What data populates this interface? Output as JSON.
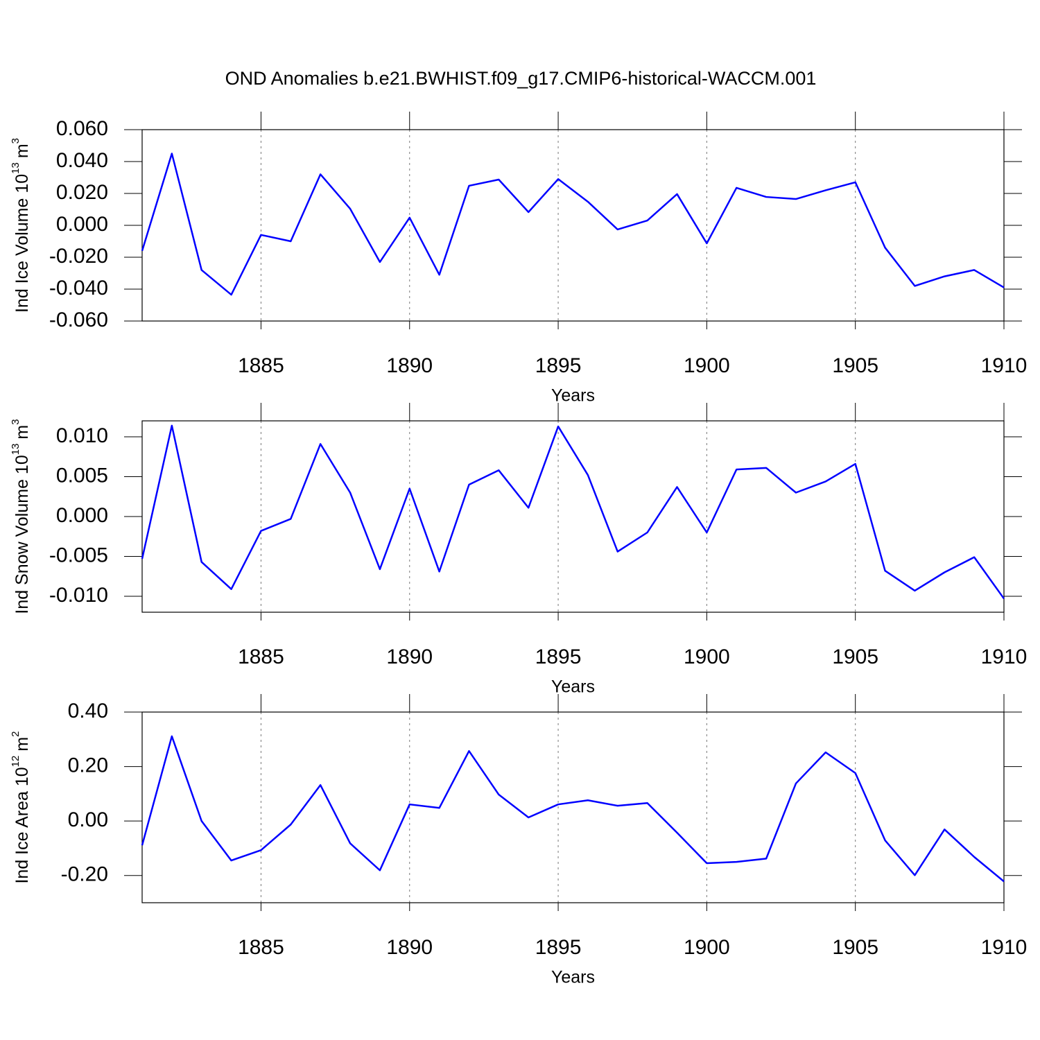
{
  "title": "OND Anomalies b.e21.BWHIST.f09_g17.CMIP6-historical-WACCM.001",
  "chart_data": [
    {
      "type": "line",
      "x_label": "Years",
      "y_label": [
        "Ind Ice Volume 10",
        "13",
        "m",
        "3"
      ],
      "color": "#0000ff",
      "grid": "x",
      "x": [
        1881,
        1882,
        1883,
        1884,
        1885,
        1886,
        1887,
        1888,
        1889,
        1890,
        1891,
        1892,
        1893,
        1894,
        1895,
        1896,
        1897,
        1898,
        1899,
        1900,
        1901,
        1902,
        1903,
        1904,
        1905,
        1906,
        1907,
        1908,
        1909,
        1910
      ],
      "values": [
        -0.016,
        0.045,
        -0.028,
        -0.0435,
        -0.006,
        -0.01,
        0.032,
        0.0104,
        -0.023,
        0.0048,
        -0.031,
        0.0248,
        0.0287,
        0.0083,
        0.029,
        0.0148,
        -0.0026,
        0.003,
        0.0196,
        -0.0113,
        0.0235,
        0.0178,
        0.0165,
        0.022,
        0.027,
        -0.014,
        -0.038,
        -0.032,
        -0.028,
        -0.039
      ],
      "xlim": [
        1881,
        1910
      ],
      "xticks": [
        1885,
        1890,
        1895,
        1900,
        1905,
        1910
      ],
      "ylim": [
        -0.06,
        0.06
      ],
      "yticks": [
        {
          "value": 0.06,
          "label": "0.060"
        },
        {
          "value": 0.04,
          "label": "0.040"
        },
        {
          "value": 0.02,
          "label": "0.020"
        },
        {
          "value": 0,
          "label": "0.000"
        },
        {
          "value": -0.02,
          "label": "-0.020"
        },
        {
          "value": -0.04,
          "label": "-0.040"
        },
        {
          "value": -0.06,
          "label": "-0.060"
        }
      ]
    },
    {
      "type": "line",
      "x_label": "Years",
      "y_label": [
        "Ind Snow Volume 10",
        "13",
        "m",
        "3"
      ],
      "color": "#0000ff",
      "grid": "x",
      "x": [
        1881,
        1882,
        1883,
        1884,
        1885,
        1886,
        1887,
        1888,
        1889,
        1890,
        1891,
        1892,
        1893,
        1894,
        1895,
        1896,
        1897,
        1898,
        1899,
        1900,
        1901,
        1902,
        1903,
        1904,
        1905,
        1906,
        1907,
        1908,
        1909,
        1910
      ],
      "values": [
        -0.0053,
        0.0114,
        -0.0057,
        -0.0091,
        -0.0018,
        -0.0003,
        0.0091,
        0.003,
        -0.0066,
        0.0035,
        -0.0069,
        0.004,
        0.0058,
        0.0011,
        0.0113,
        0.0052,
        -0.0044,
        -0.002,
        0.0037,
        -0.002,
        0.0059,
        0.0061,
        0.003,
        0.0044,
        0.0066,
        -0.0068,
        -0.0093,
        -0.007,
        -0.0051,
        -0.0103
      ],
      "xlim": [
        1881,
        1910
      ],
      "xticks": [
        1885,
        1890,
        1895,
        1900,
        1905,
        1910
      ],
      "ylim": [
        -0.012,
        0.012
      ],
      "yticks": [
        {
          "value": 0.01,
          "label": "0.010"
        },
        {
          "value": 0.005,
          "label": "0.005"
        },
        {
          "value": 0,
          "label": "0.000"
        },
        {
          "value": -0.005,
          "label": "-0.005"
        },
        {
          "value": -0.01,
          "label": "-0.010"
        }
      ]
    },
    {
      "type": "line",
      "x_label": "Years",
      "y_label": [
        "Ind Ice Area 10",
        "12",
        "m",
        "2"
      ],
      "color": "#0000ff",
      "grid": "x",
      "x": [
        1881,
        1882,
        1883,
        1884,
        1885,
        1886,
        1887,
        1888,
        1889,
        1890,
        1891,
        1892,
        1893,
        1894,
        1895,
        1896,
        1897,
        1898,
        1899,
        1900,
        1901,
        1902,
        1903,
        1904,
        1905,
        1906,
        1907,
        1908,
        1909,
        1910
      ],
      "values": [
        -0.089,
        0.311,
        0.0,
        -0.145,
        -0.107,
        -0.013,
        0.132,
        -0.082,
        -0.181,
        0.061,
        0.048,
        0.257,
        0.097,
        0.013,
        0.061,
        0.076,
        0.056,
        0.066,
        -0.043,
        -0.155,
        -0.15,
        -0.138,
        0.138,
        0.252,
        0.176,
        -0.071,
        -0.199,
        -0.031,
        -0.132,
        -0.222
      ],
      "xlim": [
        1881,
        1910
      ],
      "xticks": [
        1885,
        1890,
        1895,
        1900,
        1905,
        1910
      ],
      "ylim": [
        -0.3,
        0.4
      ],
      "yticks": [
        {
          "value": 0.4,
          "label": "0.40"
        },
        {
          "value": 0.2,
          "label": "0.20"
        },
        {
          "value": 0,
          "label": "0.00"
        },
        {
          "value": -0.2,
          "label": "-0.20"
        }
      ]
    }
  ]
}
